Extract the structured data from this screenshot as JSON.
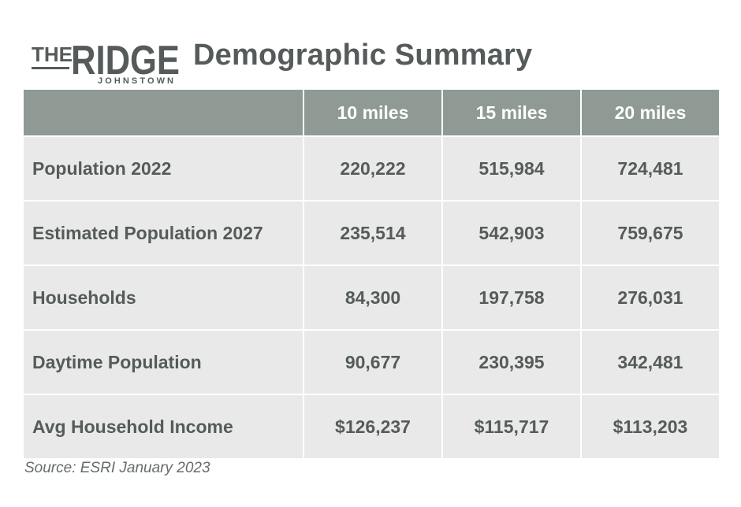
{
  "logo": {
    "line1": "THE",
    "line2": "RIDGE",
    "line3": "JOHNSTOWN",
    "color": "#555b5b"
  },
  "title": "Demographic Summary",
  "table": {
    "headers": [
      "",
      "10 miles",
      "15 miles",
      "20 miles"
    ],
    "rows": [
      {
        "label": "Population 2022",
        "values": [
          "220,222",
          "515,984",
          "724,481"
        ]
      },
      {
        "label": "Estimated Population 2027",
        "values": [
          "235,514",
          "542,903",
          "759,675"
        ]
      },
      {
        "label": "Households",
        "values": [
          "84,300",
          "197,758",
          "276,031"
        ]
      },
      {
        "label": "Daytime Population",
        "values": [
          "90,677",
          "230,395",
          "342,481"
        ]
      },
      {
        "label": "Avg Household Income",
        "values": [
          "$126,237",
          "$115,717",
          "$113,203"
        ]
      }
    ],
    "header_color": "#8f9a95",
    "row_color": "#e9e9e9"
  },
  "source": "Source: ESRI January 2023"
}
